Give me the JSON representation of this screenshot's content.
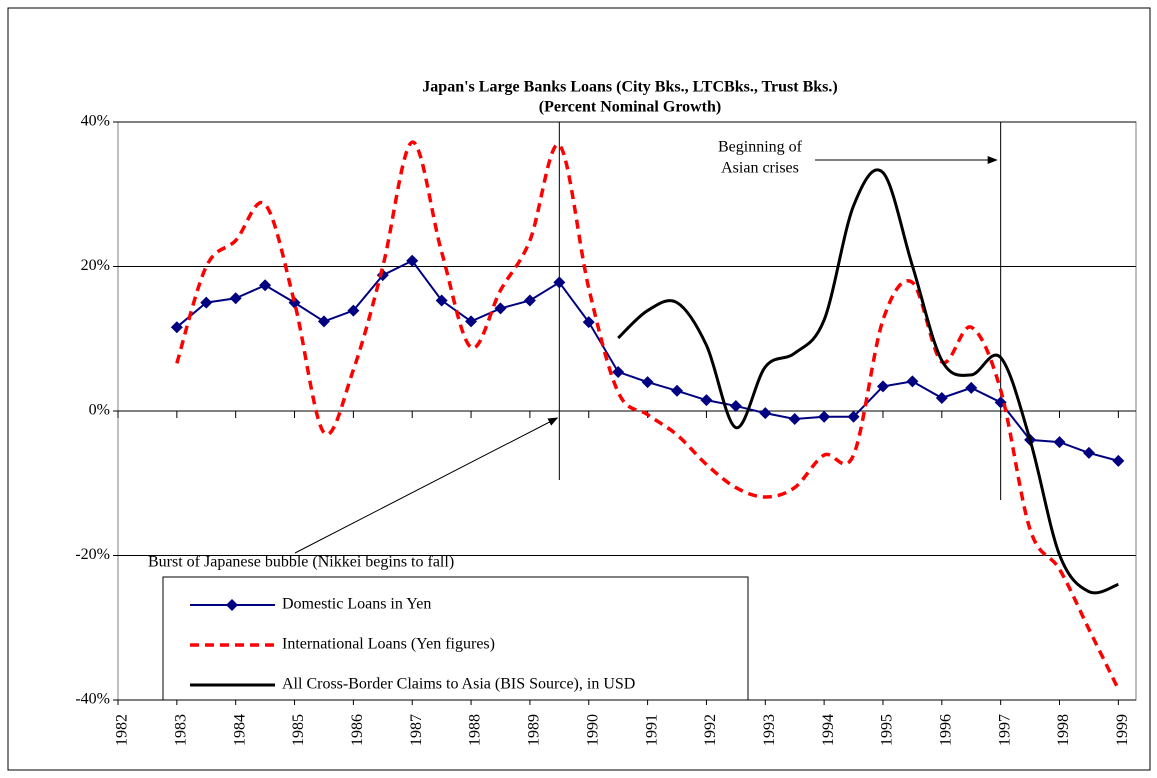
{
  "chart_data": {
    "type": "line",
    "title": [
      "Japan's Large Banks Loans (City Bks., LTCBks., Trust Bks.)",
      "(Percent Nominal Growth)"
    ],
    "x": [
      1983,
      1983.5,
      1984,
      1984.5,
      1985,
      1985.5,
      1986,
      1986.5,
      1987,
      1987.5,
      1988,
      1988.5,
      1989,
      1989.5,
      1990,
      1990.5,
      1991,
      1991.5,
      1992,
      1992.5,
      1993,
      1993.5,
      1994,
      1994.5,
      1995,
      1995.5,
      1996,
      1996.5,
      1997,
      1997.5,
      1998,
      1998.5,
      1999
    ],
    "series": [
      {
        "name": "Domestic Loans in Yen",
        "color": "#000080",
        "style": "solid-diamond",
        "values": [
          11.6,
          15.0,
          15.6,
          17.4,
          15.0,
          12.4,
          13.9,
          18.8,
          20.8,
          15.3,
          12.4,
          14.2,
          15.3,
          17.8,
          12.3,
          5.4,
          4.0,
          2.8,
          1.5,
          0.7,
          -0.3,
          -1.1,
          -0.8,
          -0.8,
          3.4,
          4.1,
          1.8,
          3.2,
          1.2,
          -4.0,
          -4.3,
          -5.8,
          -6.9
        ]
      },
      {
        "name": "International Loans (Yen figures)",
        "color": "#ff0000",
        "style": "dashed",
        "values": [
          6.6,
          20.0,
          23.6,
          28.6,
          15.0,
          -3.0,
          5.7,
          20.0,
          37.2,
          22.0,
          8.8,
          16.7,
          23.6,
          36.8,
          17.0,
          2.6,
          -0.5,
          -3.3,
          -7.4,
          -10.6,
          -11.9,
          -10.6,
          -6.1,
          -6.1,
          12.6,
          17.8,
          6.8,
          11.6,
          2.9,
          -16.4,
          -21.9,
          -30.2,
          -38.5
        ]
      },
      {
        "name": "All Cross-Border Claims to Asia (BIS Source), in USD",
        "color": "#000000",
        "style": "solid",
        "values": [
          null,
          null,
          null,
          null,
          null,
          null,
          null,
          null,
          null,
          null,
          null,
          null,
          null,
          null,
          null,
          10.1,
          13.9,
          15.0,
          9.1,
          -2.3,
          6.1,
          8.0,
          12.6,
          28.4,
          33.0,
          20.1,
          7.0,
          5.0,
          7.4,
          -4.0,
          -19.9,
          -25.0,
          -24.0
        ]
      }
    ],
    "xlim": [
      1982,
      1999.3
    ],
    "xticks": [
      1982,
      1983,
      1984,
      1985,
      1986,
      1987,
      1988,
      1989,
      1990,
      1991,
      1992,
      1993,
      1994,
      1995,
      1996,
      1997,
      1998,
      1999
    ],
    "ylim": [
      -40,
      40
    ],
    "yticks": [
      {
        "value": -40,
        "label": "-40%"
      },
      {
        "value": -20,
        "label": "-20%"
      },
      {
        "value": 0,
        "label": "0%"
      },
      {
        "value": 20,
        "label": "20%"
      },
      {
        "value": 40,
        "label": "40%"
      }
    ],
    "grid": true,
    "annotations": [
      {
        "text": [
          "Burst of Japanese bubble (Nikkei begins to fall)"
        ],
        "x": 1989.5
      },
      {
        "text": [
          "Beginning of",
          "Asian crises"
        ],
        "x": 1997
      }
    ]
  }
}
